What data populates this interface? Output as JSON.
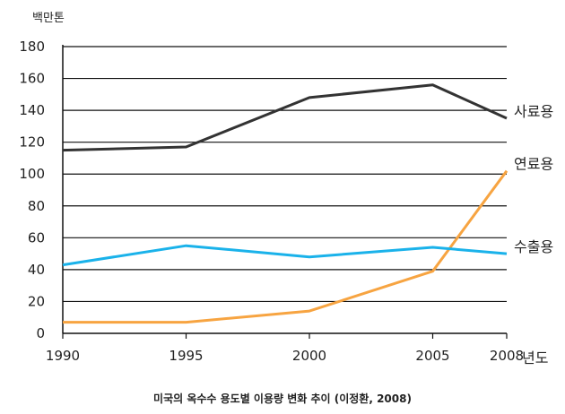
{
  "caption": "미국의 옥수수 용도별 이용량 변화 추이 (이정환, 2008)",
  "chart_data": {
    "type": "line",
    "ylabel": "백만톤",
    "xlabel": "년도",
    "x": [
      1990,
      1995,
      2000,
      2005,
      2008
    ],
    "x_tick_labels": [
      "1990",
      "1995",
      "2000",
      "2005",
      "2008"
    ],
    "ylim": [
      0,
      180
    ],
    "y_ticks": [
      0,
      20,
      40,
      60,
      80,
      100,
      120,
      140,
      160,
      180
    ],
    "grid": "horizontal",
    "series": [
      {
        "name": "사료용",
        "color": "#333333",
        "values": [
          115,
          117,
          148,
          156,
          135
        ]
      },
      {
        "name": "연료용",
        "color": "#f7a441",
        "values": [
          7,
          7,
          14,
          39,
          102
        ]
      },
      {
        "name": "수출용",
        "color": "#1ab2ea",
        "values": [
          43,
          55,
          48,
          54,
          50
        ]
      }
    ]
  }
}
